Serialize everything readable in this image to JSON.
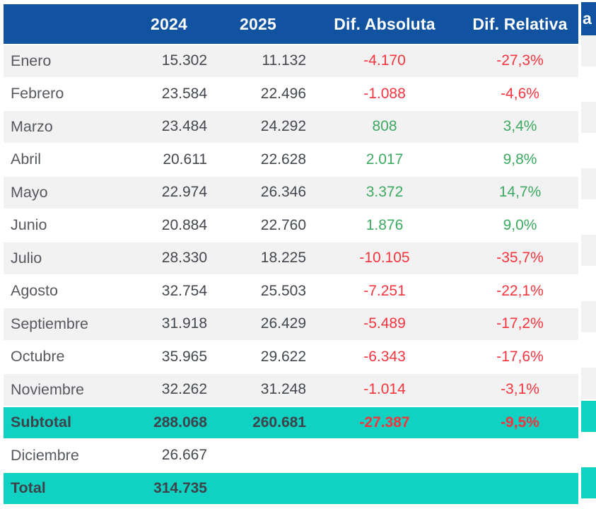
{
  "colors": {
    "header_bg": "#1153A1",
    "header_text": "#FFFFFF",
    "stripe_bg": "#F2F2F2",
    "row_bg": "#FFFFFF",
    "accent_teal": "#0FD2C3",
    "negative": "#F5353E",
    "positive": "#3DA961",
    "text_dark": "#55585E",
    "num_color": "#43474E",
    "text_strong": "#3E434A"
  },
  "table": {
    "columns": [
      {
        "key": "label",
        "label": ""
      },
      {
        "key": "y2024",
        "label": "2024"
      },
      {
        "key": "y2025",
        "label": "2025"
      },
      {
        "key": "dif_abs",
        "label": "Dif. Absoluta"
      },
      {
        "key": "dif_rel",
        "label": "Dif. Relativa"
      }
    ],
    "rows": [
      {
        "label": "Enero",
        "y2024": "15.302",
        "y2025": "11.132",
        "dif_abs": "-4.170",
        "dif_rel": "-27,3%",
        "trend": "neg",
        "stripe": true,
        "type": "month"
      },
      {
        "label": "Febrero",
        "y2024": "23.584",
        "y2025": "22.496",
        "dif_abs": "-1.088",
        "dif_rel": "-4,6%",
        "trend": "neg",
        "stripe": false,
        "type": "month"
      },
      {
        "label": "Marzo",
        "y2024": "23.484",
        "y2025": "24.292",
        "dif_abs": "808",
        "dif_rel": "3,4%",
        "trend": "pos",
        "stripe": true,
        "type": "month"
      },
      {
        "label": "Abril",
        "y2024": "20.611",
        "y2025": "22.628",
        "dif_abs": "2.017",
        "dif_rel": "9,8%",
        "trend": "pos",
        "stripe": false,
        "type": "month"
      },
      {
        "label": "Mayo",
        "y2024": "22.974",
        "y2025": "26.346",
        "dif_abs": "3.372",
        "dif_rel": "14,7%",
        "trend": "pos",
        "stripe": true,
        "type": "month"
      },
      {
        "label": "Junio",
        "y2024": "20.884",
        "y2025": "22.760",
        "dif_abs": "1.876",
        "dif_rel": "9,0%",
        "trend": "pos",
        "stripe": false,
        "type": "month"
      },
      {
        "label": "Julio",
        "y2024": "28.330",
        "y2025": "18.225",
        "dif_abs": "-10.105",
        "dif_rel": "-35,7%",
        "trend": "neg",
        "stripe": true,
        "type": "month"
      },
      {
        "label": "Agosto",
        "y2024": "32.754",
        "y2025": "25.503",
        "dif_abs": "-7.251",
        "dif_rel": "-22,1%",
        "trend": "neg",
        "stripe": false,
        "type": "month"
      },
      {
        "label": "Septiembre",
        "y2024": "31.918",
        "y2025": "26.429",
        "dif_abs": "-5.489",
        "dif_rel": "-17,2%",
        "trend": "neg",
        "stripe": true,
        "type": "month"
      },
      {
        "label": "Octubre",
        "y2024": "35.965",
        "y2025": "29.622",
        "dif_abs": "-6.343",
        "dif_rel": "-17,6%",
        "trend": "neg",
        "stripe": false,
        "type": "month"
      },
      {
        "label": "Noviembre",
        "y2024": "32.262",
        "y2025": "31.248",
        "dif_abs": "-1.014",
        "dif_rel": "-3,1%",
        "trend": "neg",
        "stripe": true,
        "type": "month"
      },
      {
        "label": "Subtotal",
        "y2024": "288.068",
        "y2025": "260.681",
        "dif_abs": "-27.387",
        "dif_rel": "-9,5%",
        "trend": "neg",
        "stripe": false,
        "type": "subtotal"
      },
      {
        "label": "Diciembre",
        "y2024": "26.667",
        "y2025": "",
        "dif_abs": "",
        "dif_rel": "",
        "trend": "none",
        "stripe": false,
        "type": "month"
      },
      {
        "label": "Total",
        "y2024": "314.735",
        "y2025": "",
        "dif_abs": "",
        "dif_rel": "",
        "trend": "none",
        "stripe": false,
        "type": "total"
      }
    ]
  },
  "partial_table": {
    "header_fragment": "a",
    "row_pattern": [
      "gray",
      "white",
      "gray",
      "white",
      "gray",
      "white",
      "gray",
      "white",
      "gray",
      "white",
      "gray",
      "teal",
      "white",
      "teal"
    ]
  },
  "chart_data": {
    "type": "table",
    "title": "",
    "categories": [
      "Enero",
      "Febrero",
      "Marzo",
      "Abril",
      "Mayo",
      "Junio",
      "Julio",
      "Agosto",
      "Septiembre",
      "Octubre",
      "Noviembre"
    ],
    "series": [
      {
        "name": "2024",
        "values": [
          15302,
          23584,
          23484,
          20611,
          22974,
          20884,
          28330,
          32754,
          31918,
          35965,
          32262
        ]
      },
      {
        "name": "2025",
        "values": [
          11132,
          22496,
          24292,
          22628,
          26346,
          22760,
          18225,
          25503,
          26429,
          29622,
          31248
        ]
      },
      {
        "name": "Dif. Absoluta",
        "values": [
          -4170,
          -1088,
          808,
          2017,
          3372,
          1876,
          -10105,
          -7251,
          -5489,
          -6343,
          -1014
        ]
      },
      {
        "name": "Dif. Relativa (%)",
        "values": [
          -27.3,
          -4.6,
          3.4,
          9.8,
          14.7,
          9.0,
          -35.7,
          -22.1,
          -17.2,
          -17.6,
          -3.1
        ]
      }
    ],
    "subtotal": {
      "2024": 288068,
      "2025": 260681,
      "dif_absoluta": -27387,
      "dif_relativa_pct": -9.5
    },
    "diciembre": {
      "2024": 26667
    },
    "total": {
      "2024": 314735
    }
  }
}
